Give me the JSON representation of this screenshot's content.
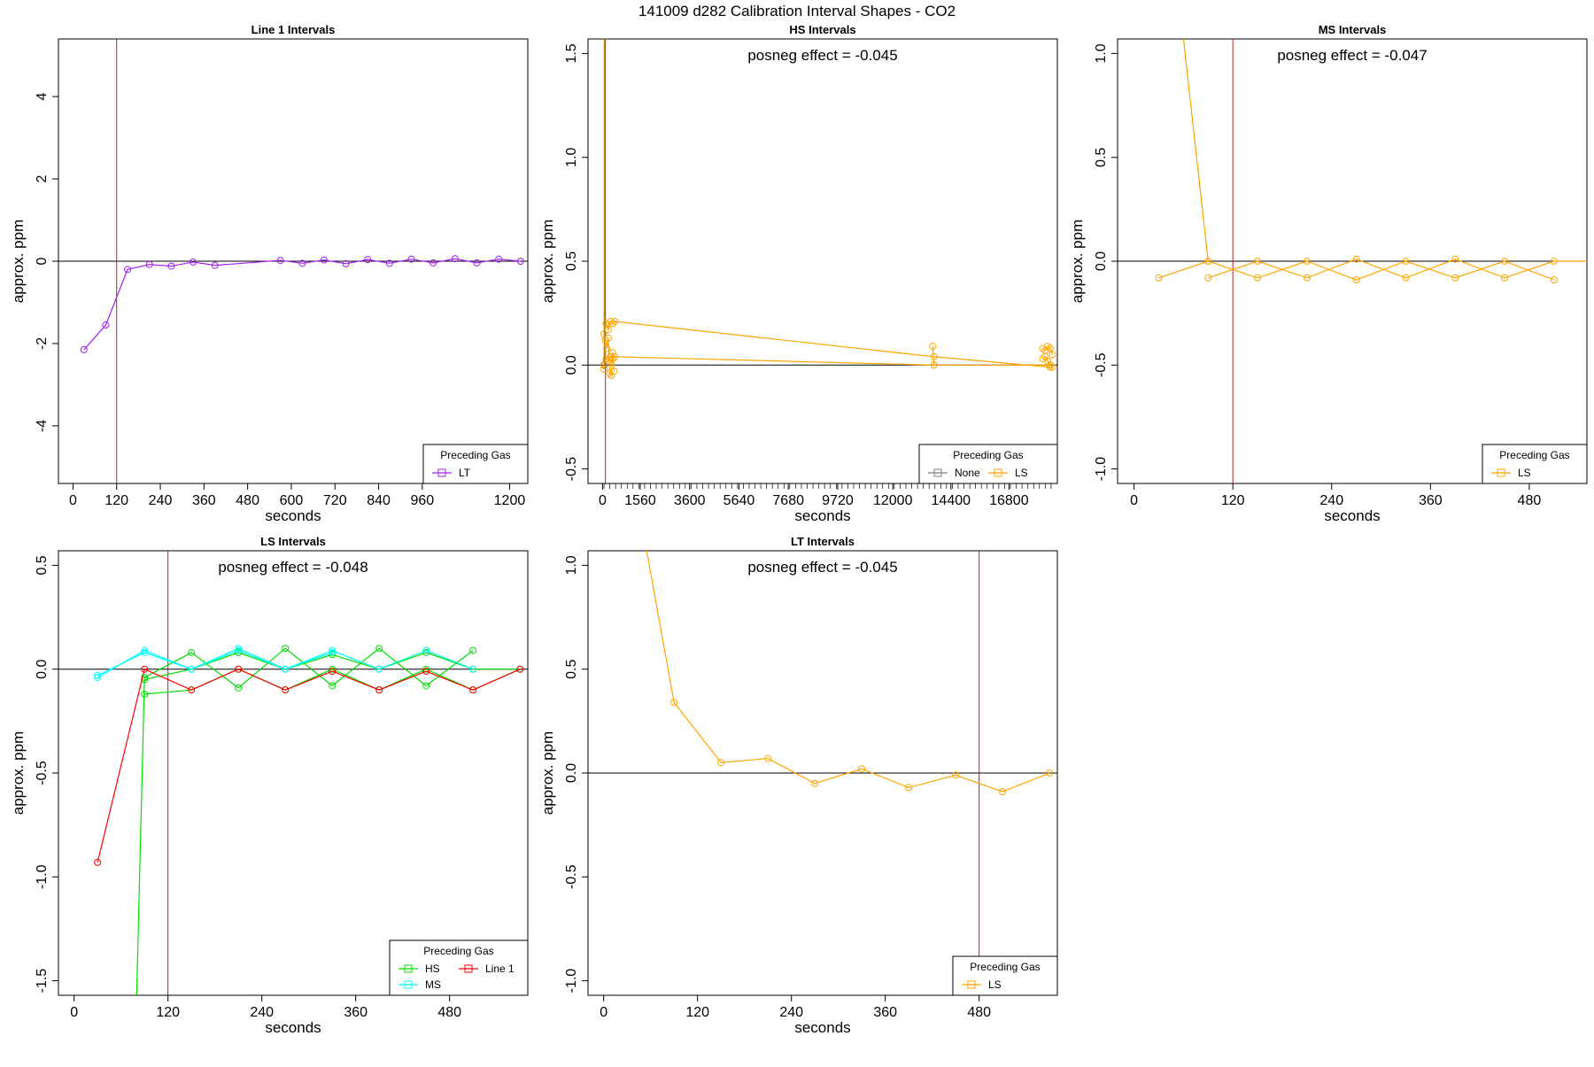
{
  "page_title": "141009  d282   Calibration Interval Shapes - CO2",
  "colors": {
    "axis": "#000000",
    "reference_line": "#b22222",
    "zero_line": "#000000",
    "legend_title_bg": "#ffffff"
  },
  "chart_data": [
    {
      "type": "line",
      "title": "Line 1 Intervals",
      "xlabel": "seconds",
      "ylabel": "approx. ppm",
      "xlim": [
        -40,
        1250
      ],
      "ylim": [
        -5.4,
        5.4
      ],
      "xticks": [
        0,
        120,
        240,
        360,
        480,
        600,
        720,
        840,
        960,
        1200
      ],
      "xtick_labels": [
        "0",
        "120",
        "240",
        "360",
        "480",
        "600",
        "720",
        "840",
        "960",
        "1200"
      ],
      "yticks": [
        -4,
        -2,
        0,
        2,
        4
      ],
      "ytick_labels": [
        "-4",
        "-2",
        "0",
        "2",
        "4"
      ],
      "vline": 120,
      "hline": 0,
      "annotation": "",
      "legend": {
        "title": "Preceding Gas",
        "placement": "bottom-right",
        "entries": [
          {
            "label": "LT",
            "color": "#a020f0"
          }
        ]
      },
      "series": [
        {
          "name": "LT",
          "color": "#a020f0",
          "x": [
            30,
            90,
            150,
            210,
            270,
            330,
            390,
            570,
            630,
            690,
            750,
            810,
            870,
            930,
            990,
            1050,
            1110,
            1170,
            1230
          ],
          "y": [
            -2.15,
            -1.55,
            -0.2,
            -0.08,
            -0.12,
            -0.02,
            -0.1,
            0.02,
            -0.05,
            0.03,
            -0.06,
            0.04,
            -0.05,
            0.05,
            -0.04,
            0.06,
            -0.04,
            0.05,
            0.0
          ]
        }
      ]
    },
    {
      "type": "line",
      "title": "HS Intervals",
      "xlabel": "seconds",
      "ylabel": "approx. ppm",
      "xlim": [
        -600,
        18800
      ],
      "ylim": [
        -0.57,
        1.57
      ],
      "xticks": [
        0,
        1560,
        3600,
        5640,
        7680,
        9720,
        12000,
        14400,
        16800
      ],
      "xtick_labels": [
        "0",
        "1560",
        "3600",
        "5640",
        "7680",
        "9720",
        "12000",
        "14400",
        "16800"
      ],
      "yticks": [
        -0.5,
        0.0,
        0.5,
        1.0,
        1.5
      ],
      "ytick_labels": [
        "-0.5",
        "0.0",
        "0.5",
        "1.0",
        "1.5"
      ],
      "vline": 120,
      "hline": 0,
      "annotation": "posneg effect = -0.045",
      "legend": {
        "title": "Preceding Gas",
        "placement": "bottom-right",
        "entries": [
          {
            "label": "None",
            "color": "#808080"
          },
          {
            "label": "LS",
            "color": "#ffa500"
          }
        ]
      },
      "series": [
        {
          "name": "LS-a",
          "color": "#ffa500",
          "x": [
            60,
            150,
            240,
            330,
            420,
            510,
            13700,
            18500
          ],
          "y": [
            0.15,
            0.2,
            0.17,
            0.21,
            0.2,
            0.21,
            0.04,
            -0.01
          ]
        },
        {
          "name": "LS-b",
          "color": "#ffa500",
          "x": [
            60,
            150,
            240,
            330,
            420,
            510,
            13700,
            18500
          ],
          "y": [
            0.0,
            0.03,
            0.02,
            0.04,
            0.03,
            0.04,
            0.0,
            0.0
          ]
        },
        {
          "name": "LS-c",
          "color": "#ffa500",
          "x": [
            60,
            120,
            180,
            240,
            300,
            360,
            420,
            480
          ],
          "y": [
            -0.02,
            0.12,
            0.08,
            0.13,
            -0.04,
            -0.05,
            0.06,
            -0.03
          ]
        },
        {
          "name": "LS-d",
          "color": "#ffa500",
          "x": [
            18200,
            18300,
            18400,
            18500,
            18600
          ],
          "y": [
            0.08,
            0.07,
            0.09,
            0.08,
            0.05
          ]
        },
        {
          "name": "LS-e",
          "color": "#ffa500",
          "x": [
            18200,
            18300,
            18400,
            18500,
            18600
          ],
          "y": [
            0.03,
            0.04,
            0.02,
            0.0,
            -0.01
          ]
        },
        {
          "name": "LS-f",
          "color": "#ffa500",
          "x": [
            13650,
            13700
          ],
          "y": [
            0.09,
            0.0
          ]
        },
        {
          "name": "None",
          "color": "#b8860b",
          "x": [
            70,
            70
          ],
          "y": [
            1.57,
            0.0
          ]
        }
      ]
    },
    {
      "type": "line",
      "title": "MS Intervals",
      "xlabel": "seconds",
      "ylabel": "approx. ppm",
      "xlim": [
        -20,
        550
      ],
      "ylim": [
        -1.07,
        1.07
      ],
      "xticks": [
        0,
        120,
        240,
        360,
        480
      ],
      "xtick_labels": [
        "0",
        "120",
        "240",
        "360",
        "480"
      ],
      "yticks": [
        -1.0,
        -0.5,
        0.0,
        0.5,
        1.0
      ],
      "ytick_labels": [
        "-1.0",
        "-0.5",
        "0.0",
        "0.5",
        "1.0"
      ],
      "vline": 120,
      "hline": 0,
      "annotation": "posneg effect = -0.047",
      "legend": {
        "title": "Preceding Gas",
        "placement": "bottom-right",
        "entries": [
          {
            "label": "LS",
            "color": "#ffa500"
          }
        ]
      },
      "series": [
        {
          "name": "LS-a",
          "color": "#ffa500",
          "x": [
            30,
            90,
            150,
            210,
            270,
            330,
            390,
            450,
            510
          ],
          "y": [
            -0.08,
            0.0,
            -0.08,
            0.0,
            -0.09,
            0.0,
            -0.08,
            0.0,
            -0.09
          ]
        },
        {
          "name": "LS-b",
          "color": "#ffa500",
          "x": [
            90,
            150,
            210,
            270,
            330,
            390,
            450,
            510,
            570
          ],
          "y": [
            -0.08,
            0.0,
            -0.08,
            0.01,
            -0.08,
            0.01,
            -0.08,
            0.0,
            0.0
          ]
        },
        {
          "name": "LS-c",
          "color": "#ffa500",
          "x": [
            60,
            90
          ],
          "y": [
            1.07,
            0.0
          ]
        }
      ]
    },
    {
      "type": "line",
      "title": "LS Intervals",
      "xlabel": "seconds",
      "ylabel": "approx. ppm",
      "xlim": [
        -20,
        580
      ],
      "ylim": [
        -1.57,
        0.57
      ],
      "xticks": [
        0,
        120,
        240,
        360,
        480
      ],
      "xtick_labels": [
        "0",
        "120",
        "240",
        "360",
        "480"
      ],
      "yticks": [
        -1.5,
        -1.0,
        -0.5,
        0.0,
        0.5
      ],
      "ytick_labels": [
        "-1.5",
        "-1.0",
        "-0.5",
        "0.0",
        "0.5"
      ],
      "vline": 120,
      "hline": 0,
      "annotation": "posneg effect = -0.048",
      "legend": {
        "title": "Preceding Gas",
        "placement": "bottom-right",
        "entries": [
          {
            "label": "HS",
            "color": "#00dd00"
          },
          {
            "label": "Line 1",
            "color": "#ff0000"
          },
          {
            "label": "MS",
            "color": "#00ffff"
          }
        ]
      },
      "series": [
        {
          "name": "HS",
          "color": "#00dd00",
          "x": [
            80,
            90,
            150,
            210,
            270,
            330,
            390,
            450,
            510
          ],
          "y": [
            -1.57,
            -0.04,
            0.08,
            -0.09,
            0.1,
            -0.08,
            0.1,
            -0.08,
            0.09
          ]
        },
        {
          "name": "HS-b",
          "color": "#00dd00",
          "x": [
            90,
            150,
            210,
            270,
            330,
            390,
            450,
            510,
            570
          ],
          "y": [
            -0.12,
            -0.1,
            0.0,
            -0.1,
            0.0,
            -0.1,
            0.0,
            -0.1,
            0.0
          ]
        },
        {
          "name": "HS-c",
          "color": "#00dd00",
          "x": [
            90,
            150,
            210,
            270,
            330,
            390,
            450,
            510,
            570
          ],
          "y": [
            -0.05,
            0.0,
            0.08,
            0.0,
            0.07,
            0.0,
            0.08,
            0.0,
            0.0
          ]
        },
        {
          "name": "Line 1",
          "color": "#ff0000",
          "x": [
            30,
            90,
            150,
            210,
            270,
            330,
            390,
            450,
            510,
            570
          ],
          "y": [
            -0.93,
            0.0,
            -0.1,
            0.0,
            -0.1,
            -0.01,
            -0.1,
            -0.01,
            -0.1,
            0.0
          ]
        },
        {
          "name": "MS",
          "color": "#00ffff",
          "x": [
            30,
            90,
            150,
            210,
            270,
            330,
            390,
            450,
            510
          ],
          "y": [
            -0.03,
            0.08,
            0.0,
            0.09,
            0.0,
            0.09,
            0.0,
            0.09,
            0.0
          ]
        },
        {
          "name": "MS-b",
          "color": "#00ffff",
          "x": [
            30,
            90,
            150,
            210,
            270,
            330
          ],
          "y": [
            -0.04,
            0.09,
            0.0,
            0.1,
            0.0,
            0.08
          ]
        }
      ]
    },
    {
      "type": "line",
      "title": "LT Intervals",
      "xlabel": "seconds",
      "ylabel": "approx. ppm",
      "xlim": [
        -20,
        580
      ],
      "ylim": [
        -1.07,
        1.07
      ],
      "xticks": [
        0,
        120,
        240,
        360,
        480
      ],
      "xtick_labels": [
        "0",
        "120",
        "240",
        "360",
        "480"
      ],
      "yticks": [
        -1.0,
        -0.5,
        0.0,
        0.5,
        1.0
      ],
      "ytick_labels": [
        "-1.0",
        "-0.5",
        "0.0",
        "0.5",
        "1.0"
      ],
      "vline": 480,
      "hline": 0,
      "annotation": "posneg effect = -0.045",
      "legend": {
        "title": "Preceding Gas",
        "placement": "bottom-right",
        "entries": [
          {
            "label": "LS",
            "color": "#ffa500"
          }
        ]
      },
      "series": [
        {
          "name": "LS",
          "color": "#ffa500",
          "x": [
            55,
            90,
            150,
            210,
            270,
            330,
            390,
            450,
            510,
            570
          ],
          "y": [
            1.07,
            0.34,
            0.05,
            0.07,
            -0.05,
            0.02,
            -0.07,
            -0.01,
            -0.09,
            0.0
          ]
        }
      ]
    }
  ]
}
